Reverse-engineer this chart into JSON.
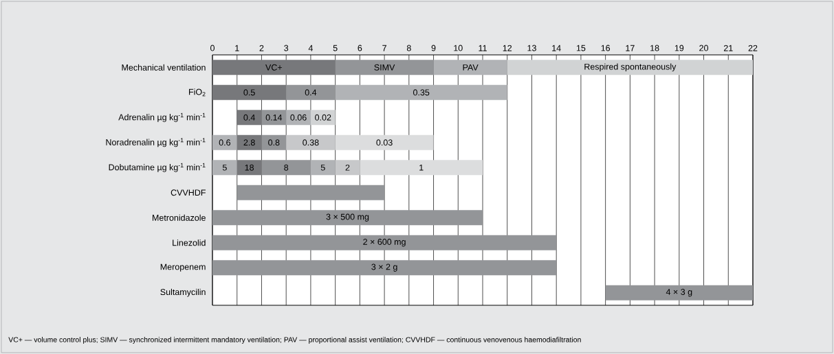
{
  "chart_data": {
    "type": "bar",
    "orientation": "horizontal",
    "grid": "x",
    "xlim": [
      0,
      22
    ],
    "xticks": [
      0,
      1,
      2,
      3,
      4,
      5,
      6,
      7,
      8,
      9,
      10,
      11,
      12,
      13,
      14,
      15,
      16,
      17,
      18,
      19,
      20,
      21,
      22
    ],
    "categories": [
      "Mechanical ventilation",
      "FiO$_{2}$",
      "Adrenalin µg kg$^{-1}$ min$^{-1}$",
      "Noradrenalin µg kg$^{-1}$ min$^{-1}$",
      "Dobutamine µg kg$^{-1}$ min$^{-1}$",
      "CVVHDF",
      "Metronidazole",
      "Linezolid",
      "Meropenem",
      "Sultamycilin"
    ],
    "series": [
      {
        "base": [
          0,
          0,
          1,
          0,
          0,
          1,
          0,
          0,
          0,
          16
        ],
        "values": [
          5,
          3,
          1,
          1,
          1,
          6,
          11,
          14,
          14,
          6
        ],
        "colors": [
          "#77787b",
          "#77787b",
          "#77787b",
          "#b1b3b6",
          "#b1b3b6",
          "#939598",
          "#939598",
          "#939598",
          "#939598",
          "#939598"
        ]
      },
      {
        "base": [
          5,
          3,
          2,
          1,
          1,
          null,
          null,
          null,
          null,
          null
        ],
        "values": [
          4,
          2,
          1,
          1,
          1,
          null,
          null,
          null,
          null,
          null
        ],
        "colors": [
          "#939598",
          "#939598",
          "#939598",
          "#77787b",
          "#77787b",
          null,
          null,
          null,
          null,
          null
        ]
      },
      {
        "base": [
          9,
          5,
          3,
          2,
          2,
          null,
          null,
          null,
          null,
          null
        ],
        "values": [
          3,
          7,
          1,
          1,
          2,
          null,
          null,
          null,
          null,
          null
        ],
        "colors": [
          "#b1b3b6",
          "#b1b3b6",
          "#b1b3b6",
          "#939598",
          "#939598",
          null,
          null,
          null,
          null,
          null
        ]
      },
      {
        "base": [
          12,
          null,
          4,
          3,
          4,
          null,
          null,
          null,
          null,
          null
        ],
        "values": [
          10,
          null,
          1,
          2,
          1,
          null,
          null,
          null,
          null,
          null
        ],
        "colors": [
          "#d1d3d4",
          null,
          "#d1d3d4",
          "#c7c8ca",
          "#b1b3b6",
          null,
          null,
          null,
          null,
          null
        ]
      },
      {
        "base": [
          null,
          null,
          null,
          5,
          5,
          null,
          null,
          null,
          null,
          null
        ],
        "values": [
          null,
          null,
          null,
          4,
          1,
          null,
          null,
          null,
          null,
          null
        ],
        "colors": [
          null,
          null,
          null,
          "#dcddde",
          "#c7c8ca",
          null,
          null,
          null,
          null,
          null
        ]
      },
      {
        "base": [
          null,
          null,
          null,
          null,
          6,
          null,
          null,
          null,
          null,
          null
        ],
        "values": [
          null,
          null,
          null,
          null,
          5,
          null,
          null,
          null,
          null,
          null
        ],
        "colors": [
          null,
          null,
          null,
          null,
          "#dcddde",
          null,
          null,
          null,
          null,
          null
        ]
      }
    ],
    "annotations": [
      {
        "text": "VC+",
        "x": 2.5,
        "y": "Mechanical ventilation"
      },
      {
        "text": "SIMV",
        "x": 7,
        "y": "Mechanical ventilation"
      },
      {
        "text": "PAV",
        "x": 10.5,
        "y": "Mechanical ventilation"
      },
      {
        "text": "Respired spontaneously",
        "x": 17,
        "y": "Mechanical ventilation"
      },
      {
        "text": "0.5",
        "x": 1.5,
        "y": "FiO$_{2}$"
      },
      {
        "text": "0.4",
        "x": 4,
        "y": "FiO$_{2}$"
      },
      {
        "text": "0.35",
        "x": 8.5,
        "y": "FiO$_{2}$"
      },
      {
        "text": "0.4",
        "x": 1.5,
        "y": "Adrenalin µg kg$^{-1}$ min$^{-1}$"
      },
      {
        "text": "0.14",
        "x": 2.5,
        "y": "Adrenalin µg kg$^{-1}$ min$^{-1}$"
      },
      {
        "text": "0.06",
        "x": 3.5,
        "y": "Adrenalin µg kg$^{-1}$ min$^{-1}$"
      },
      {
        "text": "0.02",
        "x": 4.5,
        "y": "Adrenalin µg kg$^{-1}$ min$^{-1}$"
      },
      {
        "text": "0.6",
        "x": 0.5,
        "y": "Noradrenalin µg kg$^{-1}$ min$^{-1}$"
      },
      {
        "text": "2.8",
        "x": 1.5,
        "y": "Noradrenalin µg kg$^{-1}$ min$^{-1}$"
      },
      {
        "text": "0.8",
        "x": 2.5,
        "y": "Noradrenalin µg kg$^{-1}$ min$^{-1}$"
      },
      {
        "text": "0.38",
        "x": 4,
        "y": "Noradrenalin µg kg$^{-1}$ min$^{-1}$"
      },
      {
        "text": "0.03",
        "x": 7,
        "y": "Noradrenalin µg kg$^{-1}$ min$^{-1}$"
      },
      {
        "text": "5",
        "x": 0.5,
        "y": "Dobutamine µg kg$^{-1}$ min$^{-1}$"
      },
      {
        "text": "18",
        "x": 1.5,
        "y": "Dobutamine µg kg$^{-1}$ min$^{-1}$"
      },
      {
        "text": "8",
        "x": 3,
        "y": "Dobutamine µg kg$^{-1}$ min$^{-1}$"
      },
      {
        "text": "5",
        "x": 4.5,
        "y": "Dobutamine µg kg$^{-1}$ min$^{-1}$"
      },
      {
        "text": "2",
        "x": 5.5,
        "y": "Dobutamine µg kg$^{-1}$ min$^{-1}$"
      },
      {
        "text": "1",
        "x": 8.5,
        "y": "Dobutamine µg kg$^{-1}$ min$^{-1}$"
      },
      {
        "text": "3 × 500 mg",
        "x": 5.5,
        "y": "Metronidazole"
      },
      {
        "text": "2 × 600 mg",
        "x": 7,
        "y": "Linezolid"
      },
      {
        "text": "3 × 2 g",
        "x": 7,
        "y": "Meropenem"
      },
      {
        "text": "4 × 3 g",
        "x": 19,
        "y": "Sultamycilin"
      },
      "VC+ — volume control plus; SIMV — synchronized intermittent mandatory ventilation; PAV — proportional assist ventilation; CVVHDF — continuous venovenous haemodiafiltration"
    ]
  }
}
